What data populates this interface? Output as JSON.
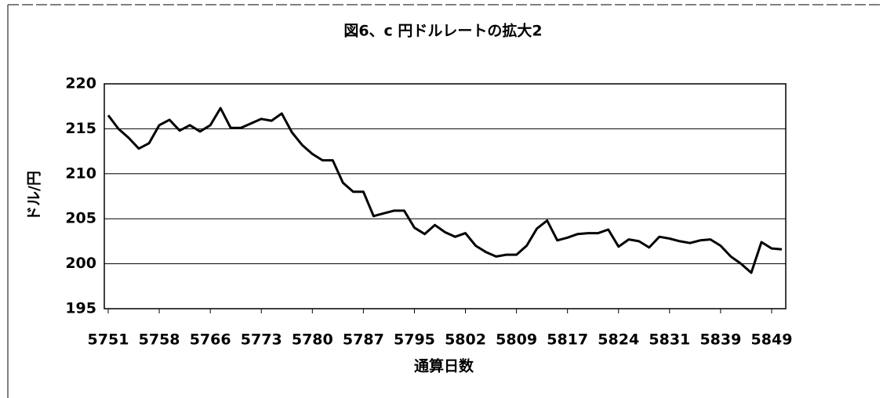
{
  "chart_data": {
    "type": "line",
    "title": "図6、c 円ドルレートの拡大2",
    "y_label": "ドル/円",
    "x_label": "通算日数",
    "categories": [
      5751,
      null,
      null,
      null,
      null,
      5758,
      null,
      null,
      null,
      null,
      5766,
      null,
      null,
      null,
      null,
      5773,
      null,
      null,
      null,
      null,
      5780,
      null,
      null,
      null,
      null,
      5787,
      null,
      null,
      null,
      null,
      5795,
      null,
      null,
      null,
      null,
      5802,
      null,
      null,
      null,
      null,
      5809,
      null,
      null,
      null,
      null,
      5817,
      null,
      null,
      null,
      null,
      5824,
      null,
      null,
      null,
      null,
      5831,
      null,
      null,
      null,
      null,
      5839,
      null,
      null,
      null,
      null,
      5849,
      null
    ],
    "series": [
      {
        "name": "円ドルレート",
        "color": "#000000",
        "values": [
          216.5,
          215.0,
          214.0,
          212.8,
          213.4,
          215.4,
          216.0,
          214.8,
          215.4,
          214.7,
          215.4,
          217.3,
          215.1,
          215.1,
          215.6,
          216.1,
          215.9,
          216.7,
          214.6,
          213.2,
          212.2,
          211.5,
          211.5,
          209.0,
          208.0,
          208.0,
          205.3,
          205.6,
          205.9,
          205.9,
          204.0,
          203.3,
          204.3,
          203.5,
          203.0,
          203.4,
          202.0,
          201.3,
          200.8,
          201.0,
          201.0,
          202.0,
          203.9,
          204.8,
          202.6,
          202.9,
          203.3,
          203.4,
          203.4,
          203.8,
          201.9,
          202.7,
          202.5,
          201.8,
          203.0,
          202.8,
          202.5,
          202.3,
          202.6,
          202.7,
          202.0,
          200.8,
          200.0,
          199.0,
          202.4,
          201.7,
          201.6
        ]
      }
    ],
    "ylim": [
      195,
      220
    ],
    "yticks": [
      195,
      200,
      205,
      210,
      215,
      220
    ],
    "grid": true
  }
}
